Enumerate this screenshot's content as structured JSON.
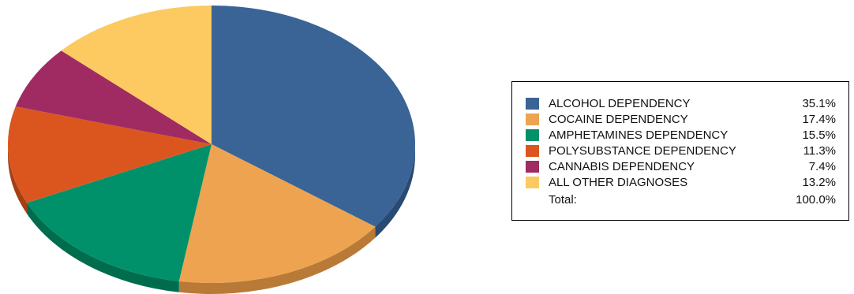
{
  "chart_data": {
    "type": "pie",
    "style": "3d-tilted",
    "title": "",
    "slices": [
      {
        "label": "ALCOHOL DEPENDENCY",
        "value": 35.1,
        "percent_label": "35.1%",
        "color": "#3a6496",
        "side_color": "#294a73"
      },
      {
        "label": "COCAINE DEPENDENCY",
        "value": 17.4,
        "percent_label": "17.4%",
        "color": "#eea350",
        "side_color": "#b97a38"
      },
      {
        "label": "AMPHETAMINES DEPENDENCY",
        "value": 15.5,
        "percent_label": "15.5%",
        "color": "#00916a",
        "side_color": "#006c4e"
      },
      {
        "label": "POLYSUBSTANCE DEPENDENCY",
        "value": 11.3,
        "percent_label": "11.3%",
        "color": "#db561e",
        "side_color": "#a53f14"
      },
      {
        "label": "CANNABIS DEPENDENCY",
        "value": 7.4,
        "percent_label": "7.4%",
        "color": "#a02b62",
        "side_color": "#761f48"
      },
      {
        "label": "ALL OTHER DIAGNOSES",
        "value": 13.2,
        "percent_label": "13.2%",
        "color": "#fcca60",
        "side_color": "#c79e48"
      }
    ],
    "total": {
      "label": "Total:",
      "percent_label": "100.0%"
    },
    "legend_position": "right"
  }
}
